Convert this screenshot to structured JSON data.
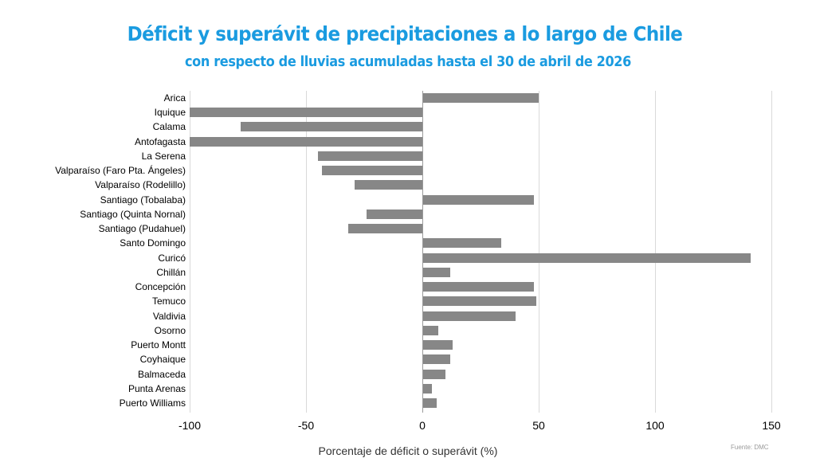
{
  "header": {
    "title": "Déficit y superávit de precipitaciones a lo largo de Chile",
    "subtitle": "con respecto de lluvias acumuladas hasta el 30 de abril de 2026"
  },
  "axis": {
    "xlabel": "Porcentaje de déficit o superávit (%)",
    "ticks": [
      "-100",
      "-50",
      "0",
      "50",
      "100",
      "150"
    ]
  },
  "source": "Fuente: DMC",
  "colors": {
    "title": "#1a9be0",
    "bar": "#878787",
    "grid": "#d9d9d9"
  },
  "chart_data": {
    "type": "bar",
    "orientation": "horizontal",
    "title": "Déficit y superávit de precipitaciones a lo largo de Chile",
    "subtitle": "con respecto de lluvias acumuladas hasta el 30 de abril de 2026",
    "xlabel": "Porcentaje de déficit o superávit (%)",
    "ylabel": "",
    "xlim": [
      -100,
      150
    ],
    "xticks": [
      -100,
      -50,
      0,
      50,
      100,
      150
    ],
    "grid": true,
    "legend": null,
    "annotation": "Fuente: DMC",
    "categories": [
      "Arica",
      "Iquique",
      "Calama",
      "Antofagasta",
      "La Serena",
      "Valparaíso (Faro Pta. Ángeles)",
      "Valparaíso (Rodelillo)",
      "Santiago (Tobalaba)",
      "Santiago (Quinta Nornal)",
      "Santiago (Pudahuel)",
      "Santo Domingo",
      "Curicó",
      "Chillán",
      "Concepción",
      "Temuco",
      "Valdivia",
      "Osorno",
      "Puerto Montt",
      "Coyhaique",
      "Balmaceda",
      "Punta Arenas",
      "Puerto Williams"
    ],
    "values": [
      50,
      -100,
      -78,
      -100,
      -45,
      -43,
      -29,
      48,
      -24,
      -32,
      34,
      141,
      12,
      48,
      49,
      40,
      7,
      13,
      12,
      10,
      4,
      6
    ]
  }
}
